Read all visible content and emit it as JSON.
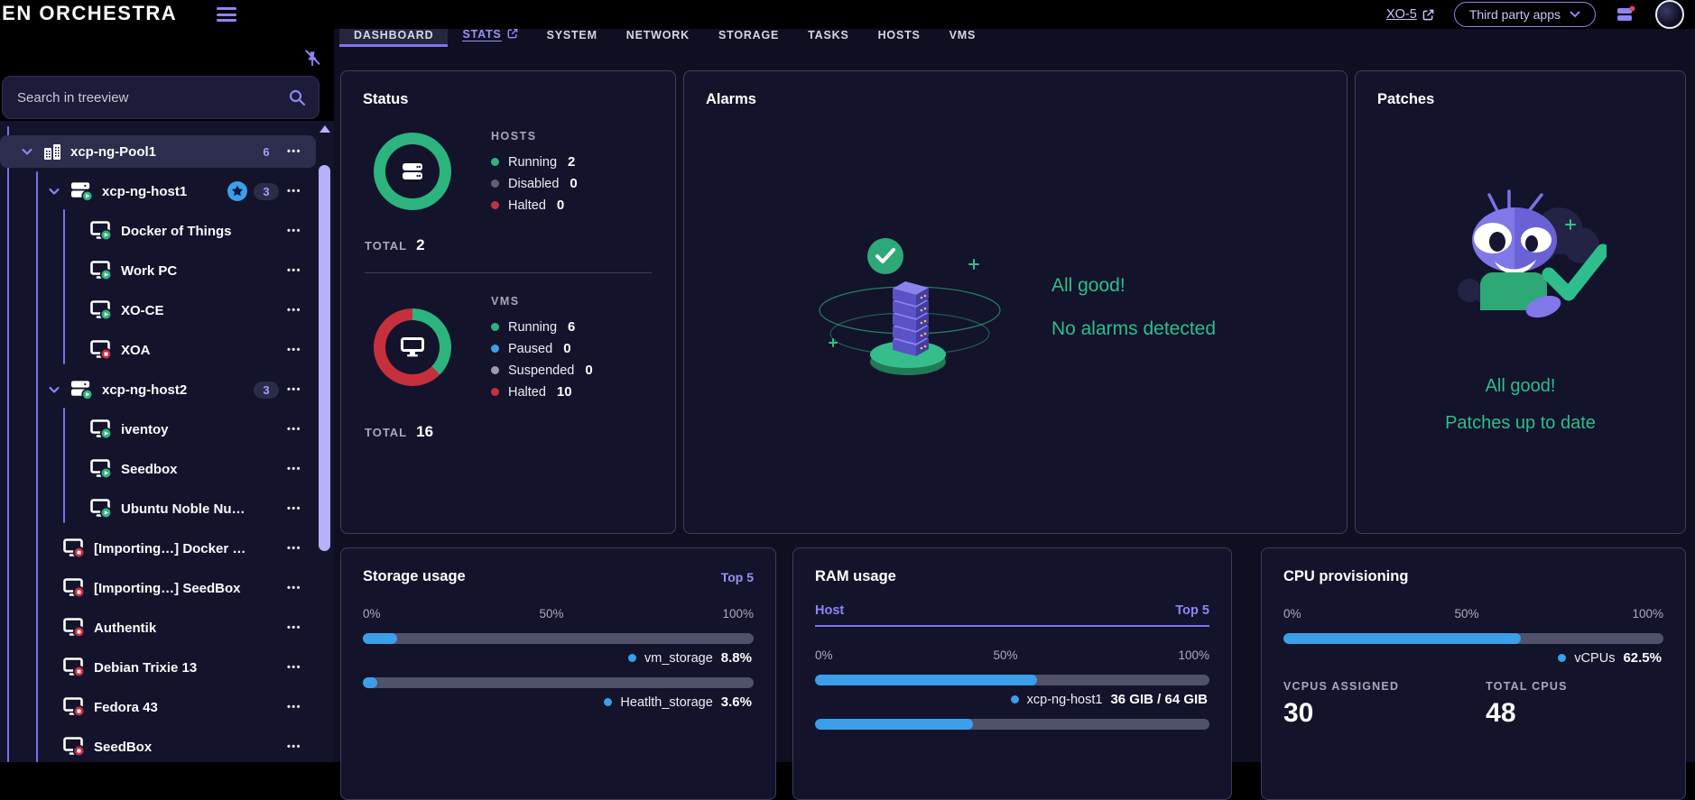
{
  "colors": {
    "accent_purple": "#8F84F5",
    "green": "#2DB37E",
    "green_text": "#2DBE8C",
    "red": "#C6303C",
    "blue": "#3B9FE9",
    "gray_disabled": "#5F6073",
    "gray_suspended": "#9C9CAD",
    "track_gray": "#50516A",
    "badge_text": "#A79EFF",
    "star_badge": "#3B9EE8"
  },
  "header": {
    "logo": "XEN ORCHESTRA",
    "xo5_label": "XO-5",
    "third_party_label": "Third party apps"
  },
  "tabs": [
    {
      "label": "DASHBOARD",
      "active": true
    },
    {
      "label": "STATS",
      "external": true
    },
    {
      "label": "SYSTEM"
    },
    {
      "label": "NETWORK"
    },
    {
      "label": "STORAGE"
    },
    {
      "label": "TASKS"
    },
    {
      "label": "HOSTS"
    },
    {
      "label": "VMS"
    }
  ],
  "sidebar": {
    "search_placeholder": "Search in treeview",
    "tree": [
      {
        "label": "xcp-ng-Pool1",
        "type": "pool",
        "chevron": true,
        "count": "6",
        "selected": true
      },
      {
        "label": "xcp-ng-host1",
        "type": "host",
        "chevron": true,
        "status": "running",
        "star": true,
        "count": "3"
      },
      {
        "label": "Docker of Things",
        "type": "vm",
        "level": 2,
        "status": "running"
      },
      {
        "label": "Work PC",
        "type": "vm",
        "level": 2,
        "status": "running"
      },
      {
        "label": "XO-CE",
        "type": "vm",
        "level": 2,
        "status": "running"
      },
      {
        "label": "XOA",
        "type": "vm",
        "level": 2,
        "status": "halted"
      },
      {
        "label": "xcp-ng-host2",
        "type": "host",
        "chevron": true,
        "status": "running",
        "count": "3"
      },
      {
        "label": "iventoy",
        "type": "vm",
        "level": 2,
        "status": "running"
      },
      {
        "label": "Seedbox",
        "type": "vm",
        "level": 2,
        "status": "running"
      },
      {
        "label": "Ubuntu Noble Nu…",
        "type": "vm",
        "level": 2,
        "status": "running"
      },
      {
        "label": "[Importing…] Docker …",
        "type": "vm",
        "level": 1,
        "status": "halted"
      },
      {
        "label": "[Importing…] SeedBox",
        "type": "vm",
        "level": 1,
        "status": "halted"
      },
      {
        "label": "Authentik",
        "type": "vm",
        "level": 1,
        "status": "halted"
      },
      {
        "label": "Debian Trixie 13",
        "type": "vm",
        "level": 1,
        "status": "halted"
      },
      {
        "label": "Fedora 43",
        "type": "vm",
        "level": 1,
        "status": "halted"
      },
      {
        "label": "SeedBox",
        "type": "vm",
        "level": 1,
        "status": "halted"
      }
    ]
  },
  "status_card": {
    "title": "Status",
    "hosts": {
      "label": "HOSTS",
      "total_label": "TOTAL",
      "total": "2",
      "segments": [
        {
          "color": "#2DB37E",
          "pct": 100
        }
      ],
      "legend": [
        {
          "name": "Running",
          "value": "2",
          "color": "#2DB37E"
        },
        {
          "name": "Disabled",
          "value": "0",
          "color": "#5F6073"
        },
        {
          "name": "Halted",
          "value": "0",
          "color": "#C6303C"
        }
      ]
    },
    "vms": {
      "label": "VMS",
      "total_label": "TOTAL",
      "total": "16",
      "segments": [
        {
          "color": "#2DB37E",
          "pct": 37.5
        },
        {
          "color": "#C6303C",
          "pct": 62.5
        }
      ],
      "legend": [
        {
          "name": "Running",
          "value": "6",
          "color": "#2DB37E"
        },
        {
          "name": "Paused",
          "value": "0",
          "color": "#3BA0EA"
        },
        {
          "name": "Suspended",
          "value": "0",
          "color": "#9C9CAD"
        },
        {
          "name": "Halted",
          "value": "10",
          "color": "#C6303C"
        }
      ]
    }
  },
  "alarms_card": {
    "title": "Alarms",
    "headline": "All good!",
    "subtext": "No alarms detected"
  },
  "patches_card": {
    "title": "Patches",
    "headline": "All good!",
    "subtext": "Patches up to date"
  },
  "storage_card": {
    "title": "Storage usage",
    "link": "Top 5",
    "scale": [
      "0%",
      "50%",
      "100%"
    ],
    "bars": [
      {
        "name": "vm_storage",
        "value": "8.8%",
        "pct": 8.8
      },
      {
        "name": "Heatlth_storage",
        "value": "3.6%",
        "pct": 3.6
      }
    ]
  },
  "ram_card": {
    "title": "RAM usage",
    "tab_left": "Host",
    "tab_right": "Top 5",
    "scale": [
      "0%",
      "50%",
      "100%"
    ],
    "bars": [
      {
        "name": "xcp-ng-host1",
        "value": "36 GIB / 64 GIB",
        "pct": 56.25
      },
      {
        "name": "",
        "value": "",
        "pct": 40
      }
    ]
  },
  "cpu_card": {
    "title": "CPU provisioning",
    "scale": [
      "0%",
      "50%",
      "100%"
    ],
    "bars": [
      {
        "name": "vCPUs",
        "value": "62.5%",
        "pct": 62.5
      }
    ],
    "stats": [
      {
        "label": "VCPUS ASSIGNED",
        "value": "30"
      },
      {
        "label": "TOTAL CPUS",
        "value": "48"
      }
    ]
  }
}
